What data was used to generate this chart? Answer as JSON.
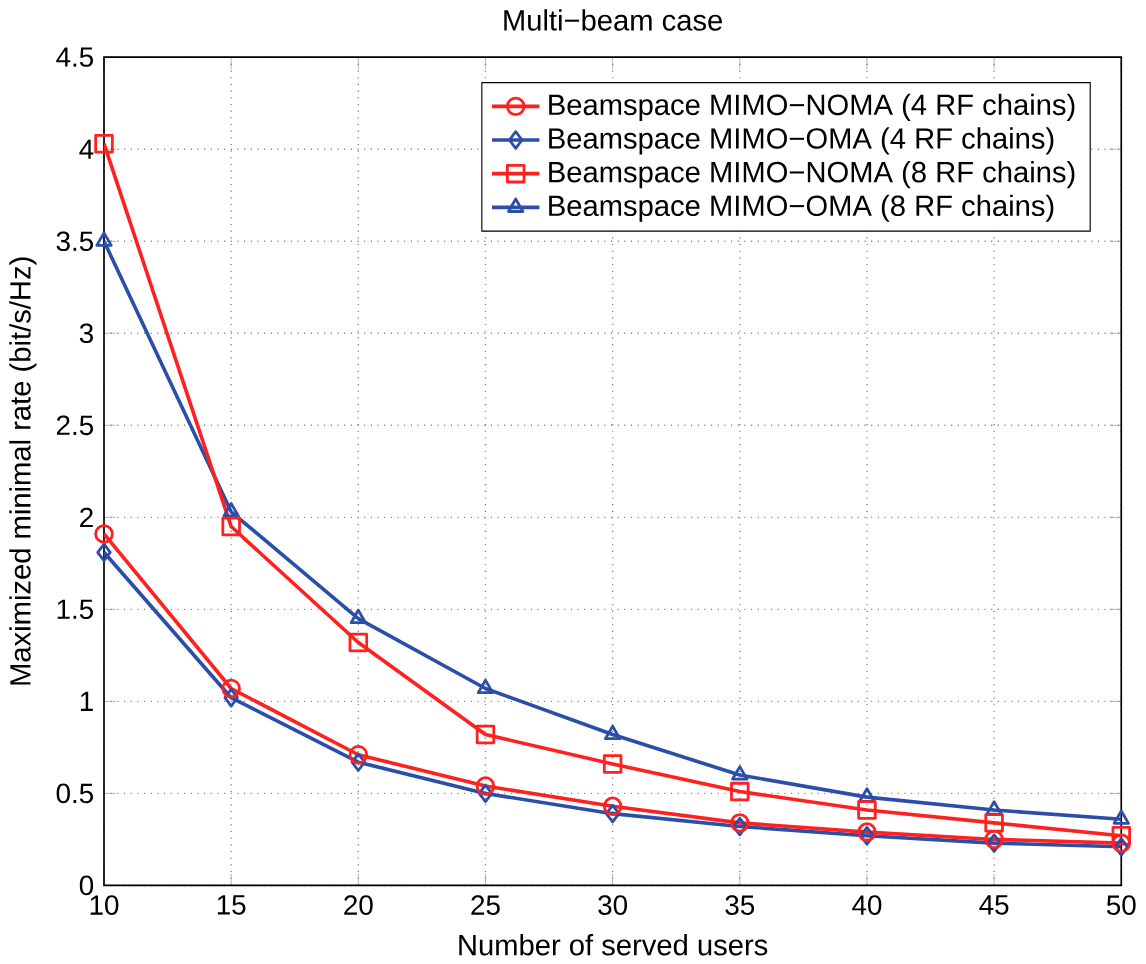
{
  "chart_data": {
    "type": "line",
    "title": "Multi−beam case",
    "xlabel": "Number of served users",
    "ylabel": "Maximized minimal rate (bit/s/Hz)",
    "x": [
      10,
      15,
      20,
      25,
      30,
      35,
      40,
      45,
      50
    ],
    "series": [
      {
        "name": "Beamspace MIMO−NOMA (4 RF chains)",
        "color": "#ff2020",
        "marker": "circle",
        "values": [
          1.91,
          1.07,
          0.71,
          0.54,
          0.43,
          0.34,
          0.29,
          0.25,
          0.23
        ]
      },
      {
        "name": "Beamspace MIMO−OMA (4 RF chains)",
        "color": "#2b4fa8",
        "marker": "diamond",
        "values": [
          1.81,
          1.02,
          0.67,
          0.5,
          0.39,
          0.32,
          0.27,
          0.23,
          0.21
        ]
      },
      {
        "name": "Beamspace MIMO−NOMA (8 RF chains)",
        "color": "#ff2020",
        "marker": "square",
        "values": [
          4.03,
          1.95,
          1.32,
          0.82,
          0.66,
          0.51,
          0.41,
          0.34,
          0.27
        ]
      },
      {
        "name": "Beamspace MIMO−OMA (8 RF chains)",
        "color": "#2b4fa8",
        "marker": "triangle",
        "values": [
          3.5,
          2.03,
          1.45,
          1.07,
          0.82,
          0.6,
          0.48,
          0.41,
          0.36
        ]
      }
    ],
    "xlim": [
      10,
      50
    ],
    "ylim": [
      0,
      4.5
    ],
    "xticks": [
      10,
      15,
      20,
      25,
      30,
      35,
      40,
      45,
      50
    ],
    "yticks": [
      0,
      0.5,
      1,
      1.5,
      2,
      2.5,
      3,
      3.5,
      4,
      4.5
    ],
    "grid": true,
    "legend": "top right",
    "line_style": "solid"
  }
}
